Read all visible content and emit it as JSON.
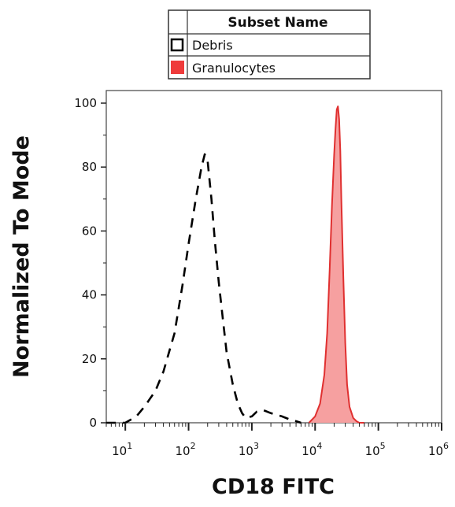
{
  "chart_data": {
    "type": "area",
    "title": "",
    "xlabel": "CD18 FITC",
    "ylabel": "Normalized To Mode",
    "x_scale": "log",
    "xlim": [
      5,
      1000000
    ],
    "ylim": [
      0,
      100
    ],
    "y_ticks": [
      "0",
      "20",
      "40",
      "60",
      "80",
      "100"
    ],
    "x_ticks": [
      {
        "base": "10",
        "exp": "1",
        "value": 10
      },
      {
        "base": "10",
        "exp": "2",
        "value": 100
      },
      {
        "base": "10",
        "exp": "3",
        "value": 1000
      },
      {
        "base": "10",
        "exp": "4",
        "value": 10000
      },
      {
        "base": "10",
        "exp": "5",
        "value": 100000
      },
      {
        "base": "10",
        "exp": "6",
        "value": 1000000
      }
    ],
    "grid": false,
    "legend": {
      "header": "Subset Name",
      "placement": "top",
      "entries": [
        {
          "label": "Debris",
          "style": "dashed-black-outline"
        },
        {
          "label": "Granulocytes",
          "style": "red-filled"
        }
      ]
    },
    "series": [
      {
        "name": "Debris",
        "color": "#000000",
        "fill": "none",
        "line": "dashed",
        "x": [
          5,
          8,
          10,
          15,
          20,
          30,
          40,
          60,
          80,
          100,
          130,
          160,
          180,
          200,
          230,
          260,
          300,
          350,
          400,
          500,
          600,
          700,
          800,
          1000,
          1200,
          1500,
          2000,
          3000,
          4000,
          5000,
          6000
        ],
        "y": [
          0,
          0,
          0,
          2,
          5,
          10,
          16,
          28,
          43,
          56,
          70,
          80,
          84,
          82,
          70,
          57,
          44,
          32,
          22,
          12,
          6,
          3,
          1.5,
          2,
          3.5,
          4,
          3,
          2,
          1,
          0.5,
          0
        ]
      },
      {
        "name": "Granulocytes",
        "color": "#e03030",
        "fill": "#f6a0a0",
        "line": "solid",
        "x": [
          8000,
          10000,
          12000,
          14000,
          15500,
          17000,
          18500,
          20000,
          21000,
          22000,
          23000,
          24000,
          25000,
          26000,
          28000,
          30000,
          32000,
          35000,
          40000,
          45000,
          50000,
          60000
        ],
        "y": [
          0,
          2,
          6,
          15,
          28,
          48,
          68,
          84,
          92,
          98,
          99,
          95,
          85,
          70,
          45,
          25,
          12,
          5,
          1.5,
          0.5,
          0,
          0
        ]
      }
    ]
  }
}
